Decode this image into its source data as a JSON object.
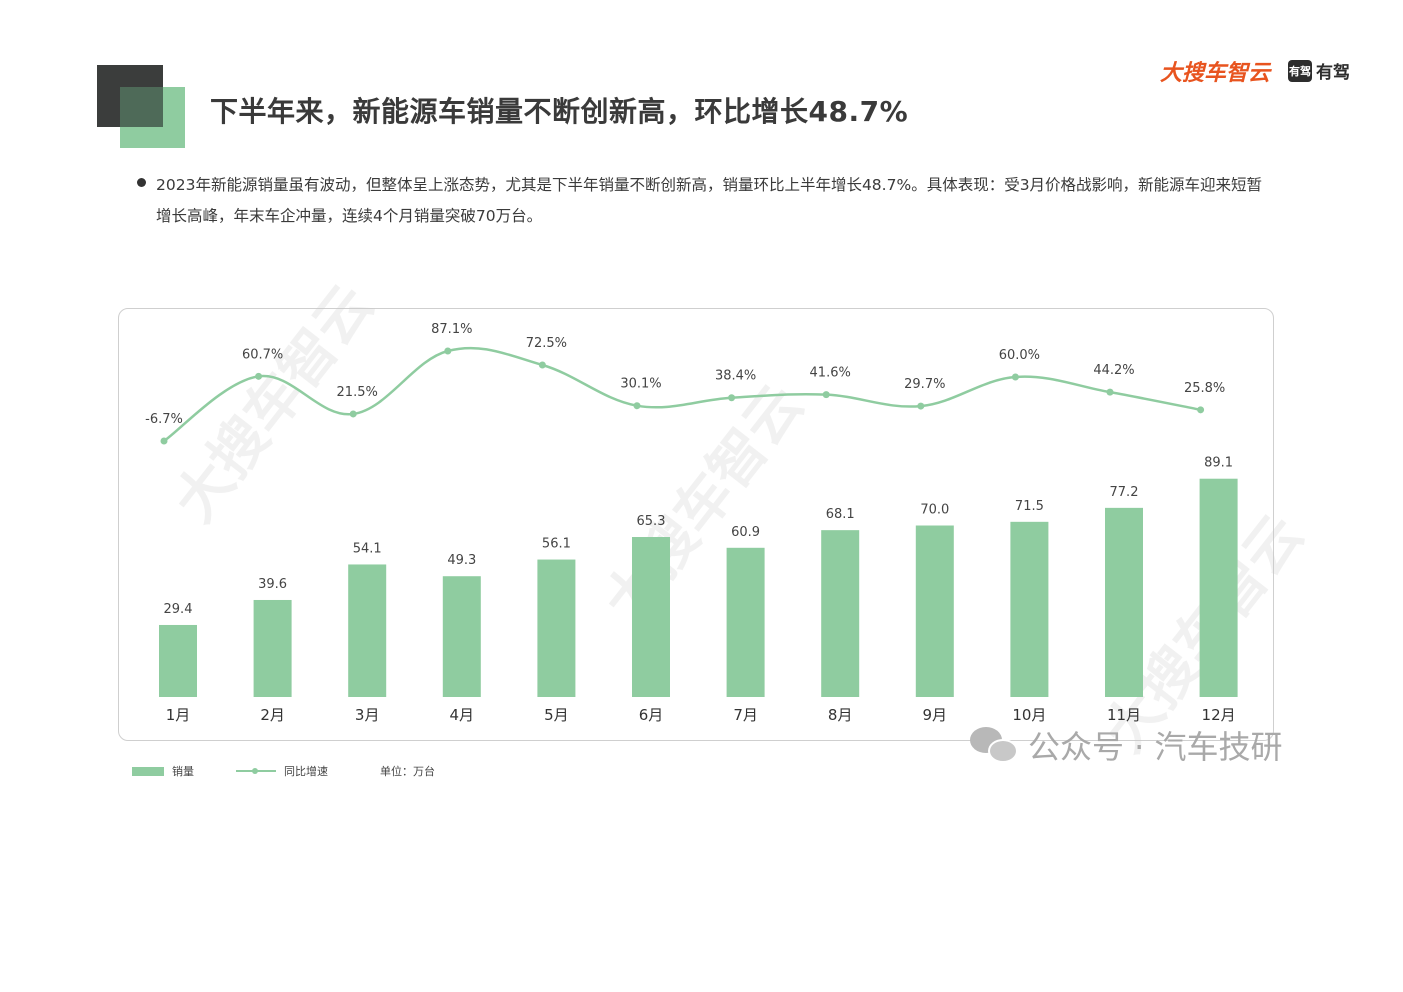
{
  "header": {
    "title": "下半年来，新能源车销量不断创新高，环比增长48.7%",
    "brand_primary": "大搜车智云",
    "brand_secondary_mark": "有驾",
    "brand_secondary_text": "有驾"
  },
  "description": "2023年新能源销量虽有波动，但整体呈上涨态势，尤其是下半年销量不断创新高，销量环比上半年增长48.7%。具体表现：受3月价格战影响，新能源车迎来短暂增长高峰，年末车企冲量，连续4个月销量突破70万台。",
  "legend": {
    "bar_label": "销量",
    "line_label": "同比增速",
    "unit_label": "单位：万台"
  },
  "watermark": {
    "text": "大搜车智云",
    "wechat_text": "公众号 · 汽车技研"
  },
  "colors": {
    "bar": "#8fcca0",
    "line": "#8fcca0",
    "accent": "#e8541f"
  },
  "chart_data": {
    "type": "bar",
    "categories": [
      "1月",
      "2月",
      "3月",
      "4月",
      "5月",
      "6月",
      "7月",
      "8月",
      "9月",
      "10月",
      "11月",
      "12月"
    ],
    "series": [
      {
        "name": "销量",
        "type": "bar",
        "values": [
          29.4,
          39.6,
          54.1,
          49.3,
          56.1,
          65.3,
          60.9,
          68.1,
          70.0,
          71.5,
          77.2,
          89.1
        ],
        "labels": [
          "29.4",
          "39.6",
          "54.1",
          "49.3",
          "56.1",
          "65.3",
          "60.9",
          "68.1",
          "70.0",
          "71.5",
          "77.2",
          "89.1"
        ]
      },
      {
        "name": "同比增速",
        "type": "line",
        "values": [
          -6.7,
          60.7,
          21.5,
          87.1,
          72.5,
          30.1,
          38.4,
          41.6,
          29.7,
          60.0,
          44.2,
          25.8
        ],
        "labels": [
          "-6.7%",
          "60.7%",
          "21.5%",
          "87.1%",
          "72.5%",
          "30.1%",
          "38.4%",
          "41.6%",
          "29.7%",
          "60.0%",
          "44.2%",
          "25.8%"
        ]
      }
    ],
    "unit": "万台",
    "grid": false,
    "legend_position": "bottom-left"
  }
}
